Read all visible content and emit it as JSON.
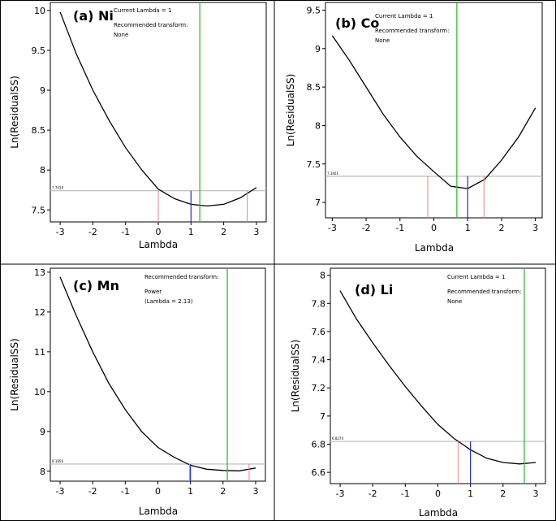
{
  "chart_data": [
    {
      "type": "line",
      "panel_label": "(a) Ni",
      "notes": [
        {
          "text": "Current Lambda = 1",
          "color": "#1f2bd0"
        },
        {
          "text": "Recommended transform:",
          "color": "#000000"
        },
        {
          "text": "None",
          "color": "#000000"
        }
      ],
      "xlabel": "Lambda",
      "ylabel": "Ln(ResidualSS)",
      "xlim": [
        -3.3,
        3.3
      ],
      "ylim": [
        7.35,
        10.1
      ],
      "xticks": [
        -3,
        -2,
        -1,
        0,
        1,
        2,
        3
      ],
      "yticks": [
        7.5,
        8,
        8.5,
        9,
        9.5,
        10
      ],
      "series": [
        {
          "x": [
            -3,
            -2.5,
            -2,
            -1.5,
            -1,
            -0.5,
            0,
            0.5,
            1,
            1.5,
            2,
            2.5,
            3
          ],
          "y": [
            9.98,
            9.45,
            9.0,
            8.62,
            8.28,
            8.0,
            7.76,
            7.64,
            7.57,
            7.55,
            7.57,
            7.65,
            7.78
          ]
        }
      ],
      "reference_line": {
        "y": 7.74,
        "label": "7.7419"
      },
      "lambda_marks": {
        "current": 1,
        "optimal": 1.27,
        "ci": [
          0.0,
          2.72
        ]
      }
    },
    {
      "type": "line",
      "panel_label": "(b) Co",
      "notes": [
        {
          "text": "Current Lambda = 1",
          "color": "#1f2bd0"
        },
        {
          "text": "Recommended transform:",
          "color": "#000000"
        },
        {
          "text": "None",
          "color": "#000000"
        }
      ],
      "xlabel": "Lambda",
      "ylabel": "Ln(ResidualSS)",
      "xlim": [
        -3.2,
        3.2
      ],
      "ylim": [
        6.8,
        9.6
      ],
      "xticks": [
        -3,
        -2,
        -1,
        0,
        1,
        2,
        3
      ],
      "yticks": [
        7,
        7.5,
        8,
        8.5,
        9,
        9.5
      ],
      "series": [
        {
          "x": [
            -3,
            -2.5,
            -2,
            -1.5,
            -1,
            -0.5,
            0,
            0.5,
            1,
            1.5,
            2,
            2.5,
            3
          ],
          "y": [
            9.17,
            8.85,
            8.5,
            8.15,
            7.85,
            7.6,
            7.4,
            7.21,
            7.18,
            7.3,
            7.55,
            7.85,
            8.23
          ]
        }
      ],
      "reference_line": {
        "y": 7.34,
        "label": "7.3401"
      },
      "lambda_marks": {
        "current": 1,
        "optimal": 0.68,
        "ci": [
          -0.18,
          1.48
        ]
      }
    },
    {
      "type": "line",
      "panel_label": "(c) Mn",
      "notes": [
        {
          "text": "Recommended transform:",
          "color": "#000000"
        },
        {
          "text": "Power",
          "color": "#000000"
        },
        {
          "text": "(Lambda = 2.13)",
          "color": "#000000"
        }
      ],
      "xlabel": "Lambda",
      "ylabel": "Ln(ResidualSS)",
      "xlim": [
        -3.3,
        3.3
      ],
      "ylim": [
        7.75,
        13.1
      ],
      "xticks": [
        -3,
        -2,
        -1,
        0,
        1,
        2,
        3
      ],
      "yticks": [
        8,
        9,
        10,
        11,
        12,
        13
      ],
      "series": [
        {
          "x": [
            -3,
            -2.5,
            -2,
            -1.5,
            -1,
            -0.5,
            0,
            0.5,
            1,
            1.5,
            2,
            2.5,
            3
          ],
          "y": [
            12.88,
            11.9,
            11.0,
            10.2,
            9.55,
            9.0,
            8.6,
            8.35,
            8.15,
            8.05,
            8.02,
            8.01,
            8.08
          ]
        }
      ],
      "reference_line": {
        "y": 8.18,
        "label": "8.1856"
      },
      "lambda_marks": {
        "current": 1,
        "optimal": 2.13,
        "ci": [
          0.97,
          2.8
        ]
      }
    },
    {
      "type": "line",
      "panel_label": "(d) Li",
      "notes": [
        {
          "text": "Current Lambda = 1",
          "color": "#1f2bd0"
        },
        {
          "text": "Recommended transform:",
          "color": "#000000"
        },
        {
          "text": "None",
          "color": "#000000"
        }
      ],
      "xlabel": "Lambda",
      "ylabel": "Ln(ResidualSS)",
      "xlim": [
        -3.3,
        3.3
      ],
      "ylim": [
        6.52,
        8.05
      ],
      "xticks": [
        -3,
        -2,
        -1,
        0,
        1,
        2,
        3
      ],
      "yticks": [
        6.6,
        6.8,
        7,
        7.2,
        7.4,
        7.6,
        7.8,
        8
      ],
      "series": [
        {
          "x": [
            -3,
            -2.5,
            -2,
            -1.5,
            -1,
            -0.5,
            0,
            0.5,
            1,
            1.5,
            2,
            2.5,
            3
          ],
          "y": [
            7.89,
            7.69,
            7.52,
            7.36,
            7.21,
            7.07,
            6.94,
            6.84,
            6.76,
            6.7,
            6.67,
            6.66,
            6.67
          ]
        }
      ],
      "reference_line": {
        "y": 6.82,
        "label": "6.8274"
      },
      "lambda_marks": {
        "current": 1,
        "optimal": 2.65,
        "ci": [
          0.62,
          3.4
        ]
      }
    }
  ],
  "colors": {
    "curve": "#000000",
    "reference_line": "#b8b8b8",
    "current_lambda": "#1f2bd0",
    "optimal_lambda": "#2fbf2f",
    "ci_lambda": "#f08080",
    "frame": "#000000"
  }
}
